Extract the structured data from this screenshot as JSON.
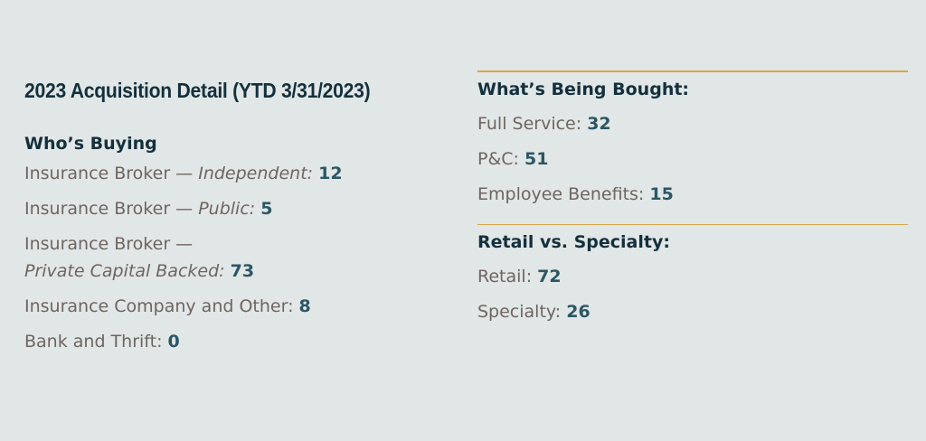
{
  "title": "2023 Acquisition Detail (YTD 3/31/2023)",
  "buyers": {
    "heading": "Who’s Buying",
    "items": [
      {
        "label": "Insurance Broker — ",
        "emph": "Independent:",
        "value": "12"
      },
      {
        "label": "Insurance Broker — ",
        "emph": "Public:",
        "value": "5"
      },
      {
        "label": "Insurance Broker —",
        "emph": "Private Capital Backed:",
        "value": "73"
      },
      {
        "label": "Insurance Company and Other:",
        "emph": "",
        "value": "8"
      },
      {
        "label": "Bank and Thrift:",
        "emph": "",
        "value": "0"
      }
    ]
  },
  "bought": {
    "heading": "What’s Being Bought:",
    "items": [
      {
        "label": "Full Service:",
        "value": "32"
      },
      {
        "label": "P&C:",
        "value": "51"
      },
      {
        "label": "Employee Benefits:",
        "value": "15"
      }
    ]
  },
  "retail_specialty": {
    "heading": "Retail vs. Specialty:",
    "items": [
      {
        "label": "Retail:",
        "value": "72"
      },
      {
        "label": "Specialty:",
        "value": "26"
      }
    ]
  },
  "colors": {
    "background": "#e1e6e6",
    "heading": "#14303d",
    "label": "#6e6560",
    "value": "#2b5765",
    "divider": "#d9a64a"
  }
}
